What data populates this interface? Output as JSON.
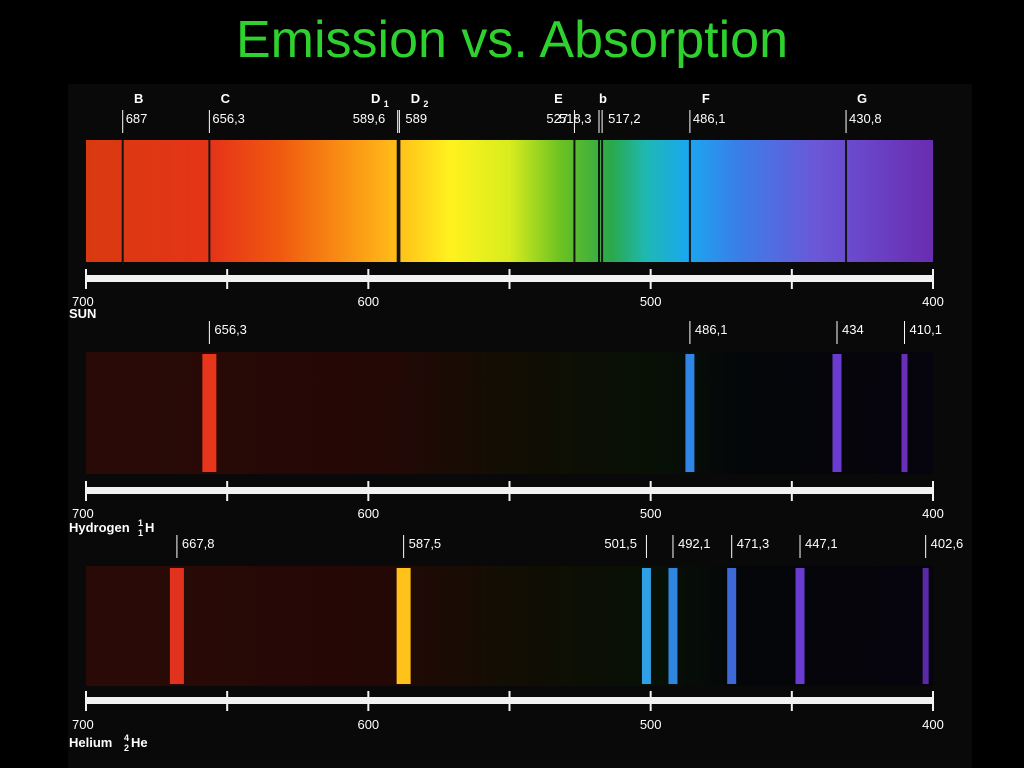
{
  "title": "Emission vs. Absorption",
  "colors": {
    "title": "#2fd12f",
    "background": "#000000"
  },
  "axis": {
    "min_nm": 400,
    "max_nm": 700,
    "tick_labels": [
      "700",
      "600",
      "500",
      "400"
    ]
  },
  "spectra": [
    {
      "id": "sun",
      "kind": "absorption",
      "name": "SUN",
      "element": "",
      "mass_number": "",
      "atomic_number": "",
      "lines": [
        {
          "letter": "B",
          "label": "687",
          "nm": 687
        },
        {
          "letter": "C",
          "label": "656,3",
          "nm": 656.3
        },
        {
          "letter": "D",
          "subscript": "1",
          "label": "589,6",
          "nm": 589.6
        },
        {
          "letter": "D",
          "subscript": "2",
          "label": "589",
          "nm": 589
        },
        {
          "letter": "E",
          "label": "527",
          "nm": 527
        },
        {
          "letter": "b",
          "label": "518,3",
          "nm": 518.3
        },
        {
          "letter": "",
          "label": "517,2",
          "nm": 517.2
        },
        {
          "letter": "F",
          "label": "486,1",
          "nm": 486.1
        },
        {
          "letter": "G",
          "label": "430,8",
          "nm": 430.8
        }
      ]
    },
    {
      "id": "hydrogen",
      "kind": "emission",
      "name": "Hydrogen",
      "element": "H",
      "mass_number": "1",
      "atomic_number": "1",
      "lines": [
        {
          "label": "656,3",
          "nm": 656.3,
          "color": "#e8361c"
        },
        {
          "label": "486,1",
          "nm": 486.1,
          "color": "#2f86e6"
        },
        {
          "label": "434",
          "nm": 434,
          "color": "#6a3bd0"
        },
        {
          "label": "410,1",
          "nm": 410.1,
          "color": "#6a2fb8"
        }
      ]
    },
    {
      "id": "helium",
      "kind": "emission",
      "name": "Helium",
      "element": "He",
      "mass_number": "4",
      "atomic_number": "2",
      "lines": [
        {
          "label": "667,8",
          "nm": 667.8,
          "color": "#e0321c"
        },
        {
          "label": "587,5",
          "nm": 587.5,
          "color": "#ffc21a"
        },
        {
          "label": "501,5",
          "nm": 501.5,
          "color": "#2fa0e6"
        },
        {
          "label": "492,1",
          "nm": 492.1,
          "color": "#2f86e0"
        },
        {
          "label": "471,3",
          "nm": 471.3,
          "color": "#3e6ad8"
        },
        {
          "label": "447,1",
          "nm": 447.1,
          "color": "#6a3bd0"
        },
        {
          "label": "402,6",
          "nm": 402.6,
          "color": "#5a2aa8"
        }
      ]
    }
  ]
}
